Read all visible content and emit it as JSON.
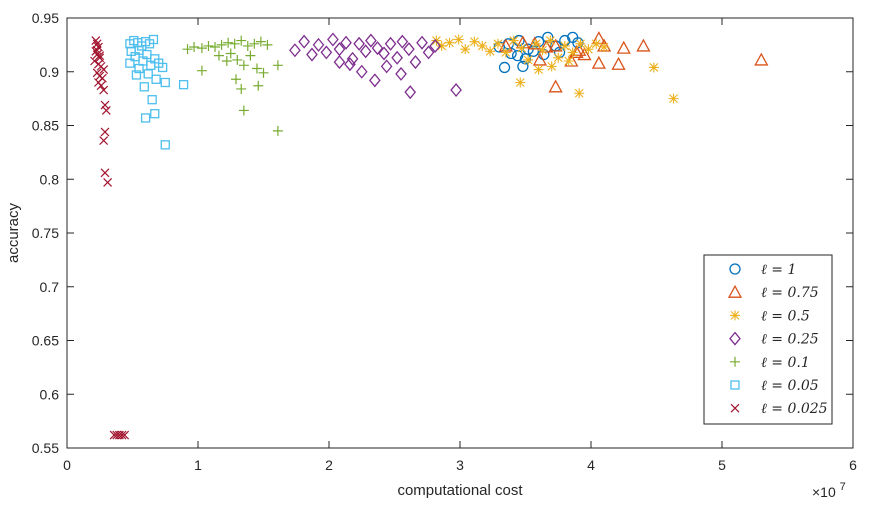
{
  "chart_data": {
    "type": "scatter",
    "title": "",
    "xlabel": "computational cost",
    "ylabel": "accuracy",
    "x_exponent_label": "×10^7",
    "x_multiplier_text": "×10",
    "x_multiplier_power": "7",
    "xlim": [
      0,
      60000000
    ],
    "ylim": [
      0.55,
      0.95
    ],
    "xticks": [
      0,
      10000000,
      20000000,
      30000000,
      40000000,
      50000000,
      60000000
    ],
    "xtick_labels": [
      "0",
      "1",
      "2",
      "3",
      "4",
      "5",
      "6"
    ],
    "yticks": [
      0.55,
      0.6,
      0.65,
      0.7,
      0.75,
      0.8,
      0.85,
      0.9,
      0.95
    ],
    "ytick_labels": [
      "0.55",
      "0.6",
      "0.65",
      "0.7",
      "0.75",
      "0.8",
      "0.85",
      "0.9",
      "0.95"
    ],
    "legend_position": "bottom-right",
    "grid": false,
    "series": [
      {
        "name": "ℓ = 1",
        "marker": "circle",
        "color": "#0072BD",
        "points": [
          [
            33400000,
            0.904
          ],
          [
            34800000,
            0.905
          ],
          [
            33000000,
            0.923
          ],
          [
            33700000,
            0.926
          ],
          [
            34500000,
            0.929
          ],
          [
            35200000,
            0.921
          ],
          [
            36000000,
            0.928
          ],
          [
            36700000,
            0.932
          ],
          [
            37300000,
            0.924
          ],
          [
            38000000,
            0.929
          ],
          [
            38600000,
            0.932
          ],
          [
            39000000,
            0.927
          ],
          [
            33900000,
            0.917
          ],
          [
            34400000,
            0.915
          ],
          [
            35600000,
            0.919
          ],
          [
            36400000,
            0.916
          ],
          [
            37600000,
            0.918
          ],
          [
            35000000,
            0.912
          ]
        ]
      },
      {
        "name": "ℓ = 0.75",
        "marker": "triangle",
        "color": "#D95319",
        "points": [
          [
            53000000,
            0.911
          ],
          [
            44000000,
            0.924
          ],
          [
            42500000,
            0.922
          ],
          [
            40600000,
            0.931
          ],
          [
            41000000,
            0.924
          ],
          [
            39500000,
            0.916
          ],
          [
            40600000,
            0.908
          ],
          [
            38500000,
            0.91
          ],
          [
            37300000,
            0.924
          ],
          [
            36600000,
            0.923
          ],
          [
            39100000,
            0.92
          ],
          [
            35700000,
            0.926
          ],
          [
            34800000,
            0.927
          ],
          [
            33500000,
            0.924
          ],
          [
            36100000,
            0.911
          ],
          [
            37300000,
            0.886
          ],
          [
            38900000,
            0.918
          ],
          [
            42100000,
            0.907
          ]
        ]
      },
      {
        "name": "ℓ = 0.5",
        "marker": "asterisk",
        "color": "#EDB120",
        "points": [
          [
            28200000,
            0.929
          ],
          [
            28600000,
            0.924
          ],
          [
            29200000,
            0.927
          ],
          [
            29900000,
            0.93
          ],
          [
            30400000,
            0.921
          ],
          [
            31100000,
            0.928
          ],
          [
            31700000,
            0.924
          ],
          [
            32300000,
            0.919
          ],
          [
            32900000,
            0.926
          ],
          [
            33500000,
            0.918
          ],
          [
            34100000,
            0.929
          ],
          [
            34700000,
            0.922
          ],
          [
            35200000,
            0.911
          ],
          [
            35800000,
            0.926
          ],
          [
            36300000,
            0.92
          ],
          [
            36900000,
            0.929
          ],
          [
            37500000,
            0.913
          ],
          [
            38000000,
            0.924
          ],
          [
            38600000,
            0.918
          ],
          [
            39200000,
            0.926
          ],
          [
            39800000,
            0.921
          ],
          [
            40400000,
            0.926
          ],
          [
            41000000,
            0.923
          ],
          [
            34600000,
            0.89
          ],
          [
            36000000,
            0.902
          ],
          [
            39100000,
            0.88
          ],
          [
            44800000,
            0.904
          ],
          [
            46300000,
            0.875
          ],
          [
            38300000,
            0.91
          ],
          [
            37000000,
            0.905
          ]
        ]
      },
      {
        "name": "ℓ = 0.25",
        "marker": "diamond",
        "color": "#7E2F8E",
        "points": [
          [
            17400000,
            0.92
          ],
          [
            18100000,
            0.928
          ],
          [
            18700000,
            0.916
          ],
          [
            19200000,
            0.925
          ],
          [
            19800000,
            0.918
          ],
          [
            20300000,
            0.93
          ],
          [
            20800000,
            0.921
          ],
          [
            21300000,
            0.927
          ],
          [
            21800000,
            0.912
          ],
          [
            22300000,
            0.926
          ],
          [
            22800000,
            0.919
          ],
          [
            23200000,
            0.929
          ],
          [
            23700000,
            0.922
          ],
          [
            24200000,
            0.917
          ],
          [
            24700000,
            0.926
          ],
          [
            25200000,
            0.913
          ],
          [
            25600000,
            0.928
          ],
          [
            26100000,
            0.921
          ],
          [
            26600000,
            0.909
          ],
          [
            27100000,
            0.927
          ],
          [
            27600000,
            0.918
          ],
          [
            28100000,
            0.924
          ],
          [
            22500000,
            0.9
          ],
          [
            23500000,
            0.892
          ],
          [
            24400000,
            0.905
          ],
          [
            25500000,
            0.898
          ],
          [
            26200000,
            0.881
          ],
          [
            29700000,
            0.883
          ],
          [
            20800000,
            0.909
          ],
          [
            21600000,
            0.907
          ]
        ]
      },
      {
        "name": "ℓ = 0.1",
        "marker": "plus",
        "color": "#77AC30",
        "points": [
          [
            9200000,
            0.921
          ],
          [
            9700000,
            0.923
          ],
          [
            10300000,
            0.922
          ],
          [
            10800000,
            0.924
          ],
          [
            11300000,
            0.923
          ],
          [
            11800000,
            0.925
          ],
          [
            12300000,
            0.927
          ],
          [
            12800000,
            0.926
          ],
          [
            13300000,
            0.929
          ],
          [
            13800000,
            0.924
          ],
          [
            14300000,
            0.926
          ],
          [
            14800000,
            0.928
          ],
          [
            15300000,
            0.925
          ],
          [
            12500000,
            0.917
          ],
          [
            13000000,
            0.911
          ],
          [
            13500000,
            0.906
          ],
          [
            14000000,
            0.915
          ],
          [
            14500000,
            0.903
          ],
          [
            15000000,
            0.899
          ],
          [
            16100000,
            0.906
          ],
          [
            10300000,
            0.901
          ],
          [
            12900000,
            0.893
          ],
          [
            13300000,
            0.884
          ],
          [
            13500000,
            0.864
          ],
          [
            16100000,
            0.845
          ],
          [
            14600000,
            0.887
          ],
          [
            11600000,
            0.915
          ],
          [
            12200000,
            0.91
          ]
        ]
      },
      {
        "name": "ℓ = 0.05",
        "marker": "square",
        "color": "#4DBEEE",
        "points": [
          [
            4800000,
            0.926
          ],
          [
            5100000,
            0.929
          ],
          [
            5400000,
            0.927
          ],
          [
            5700000,
            0.924
          ],
          [
            6000000,
            0.928
          ],
          [
            6300000,
            0.926
          ],
          [
            6600000,
            0.93
          ],
          [
            4900000,
            0.919
          ],
          [
            5200000,
            0.914
          ],
          [
            5500000,
            0.92
          ],
          [
            5800000,
            0.91
          ],
          [
            6100000,
            0.916
          ],
          [
            6400000,
            0.906
          ],
          [
            6700000,
            0.912
          ],
          [
            7000000,
            0.908
          ],
          [
            7300000,
            0.904
          ],
          [
            4800000,
            0.908
          ],
          [
            5500000,
            0.903
          ],
          [
            6200000,
            0.898
          ],
          [
            6800000,
            0.893
          ],
          [
            7500000,
            0.89
          ],
          [
            8900000,
            0.888
          ],
          [
            5900000,
            0.886
          ],
          [
            6500000,
            0.874
          ],
          [
            6700000,
            0.861
          ],
          [
            6000000,
            0.857
          ],
          [
            7500000,
            0.832
          ],
          [
            5300000,
            0.897
          ]
        ]
      },
      {
        "name": "ℓ = 0.025",
        "marker": "x",
        "color": "#A2142F",
        "points": [
          [
            2200000,
            0.929
          ],
          [
            2300000,
            0.926
          ],
          [
            2400000,
            0.923
          ],
          [
            2200000,
            0.919
          ],
          [
            2300000,
            0.916
          ],
          [
            2500000,
            0.913
          ],
          [
            2100000,
            0.91
          ],
          [
            2400000,
            0.907
          ],
          [
            2600000,
            0.905
          ],
          [
            2800000,
            0.902
          ],
          [
            2300000,
            0.899
          ],
          [
            2500000,
            0.896
          ],
          [
            2700000,
            0.894
          ],
          [
            2400000,
            0.89
          ],
          [
            2600000,
            0.887
          ],
          [
            2800000,
            0.883
          ],
          [
            2900000,
            0.869
          ],
          [
            3000000,
            0.864
          ],
          [
            2900000,
            0.844
          ],
          [
            2800000,
            0.836
          ],
          [
            2900000,
            0.806
          ],
          [
            3100000,
            0.797
          ],
          [
            2500000,
            0.915
          ],
          [
            2300000,
            0.92
          ],
          [
            3600000,
            0.562
          ],
          [
            3800000,
            0.562
          ],
          [
            4000000,
            0.562
          ],
          [
            4200000,
            0.562
          ],
          [
            4400000,
            0.562
          ]
        ]
      }
    ]
  }
}
